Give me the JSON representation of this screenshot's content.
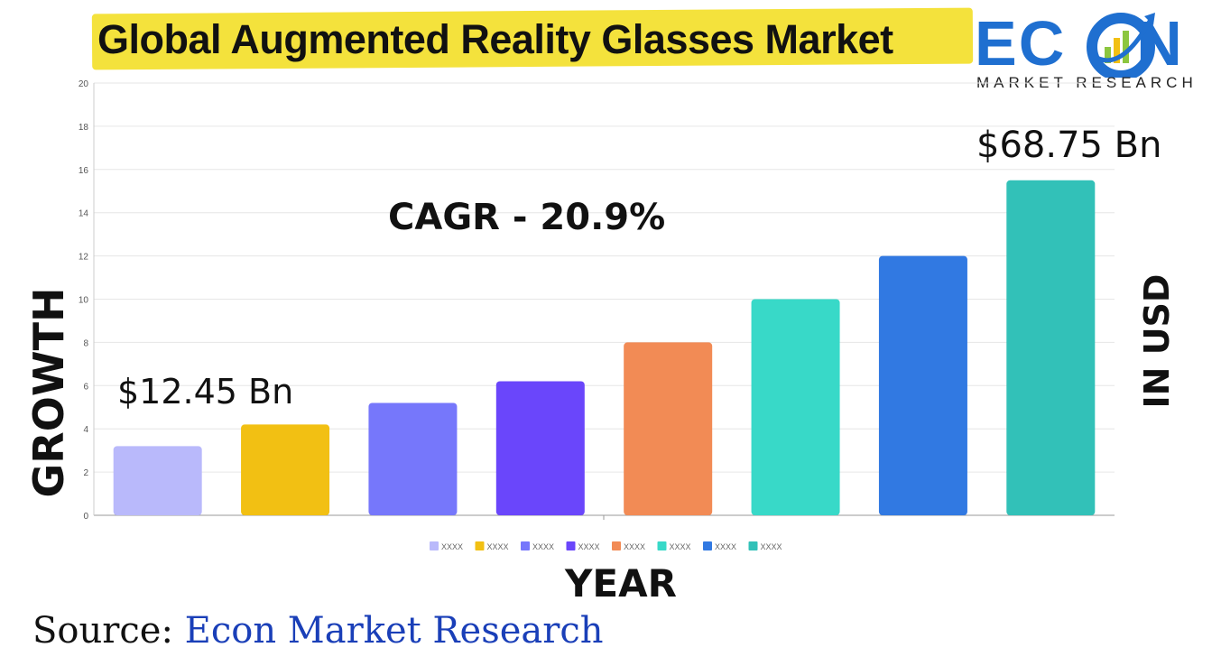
{
  "header": {
    "title": "Global Augmented Reality Glasses Market"
  },
  "logo": {
    "word": "ECON",
    "subtitle": "MARKET RESEARCH",
    "color": "#1f6fd0"
  },
  "source": {
    "label": "Source:",
    "value": "Econ Market Research"
  },
  "chart_data": {
    "type": "bar",
    "title": "Global Augmented Reality Glasses Market",
    "xlabel": "YEAR",
    "ylabel": "GROWTH",
    "ylabel_right": "IN USD",
    "ylim": [
      0,
      20
    ],
    "yticks": [
      0,
      2,
      4,
      6,
      8,
      10,
      12,
      14,
      16,
      18,
      20
    ],
    "grid": true,
    "legend": "bottom",
    "categories": [
      "XXXX",
      "XXXX",
      "XXXX",
      "XXXX",
      "XXXX",
      "XXXX",
      "XXXX",
      "XXXX"
    ],
    "values": [
      3.2,
      4.2,
      5.2,
      6.2,
      8.0,
      10.0,
      12.0,
      15.5
    ],
    "colors": [
      "#b9b9fb",
      "#f2c013",
      "#7677fb",
      "#6a46fb",
      "#f28b55",
      "#38d9c8",
      "#3179e2",
      "#32c1b8"
    ],
    "annotations": {
      "cagr": "CAGR - 20.9%",
      "start_value": "$12.45 Bn",
      "end_value": "$68.75 Bn"
    }
  }
}
